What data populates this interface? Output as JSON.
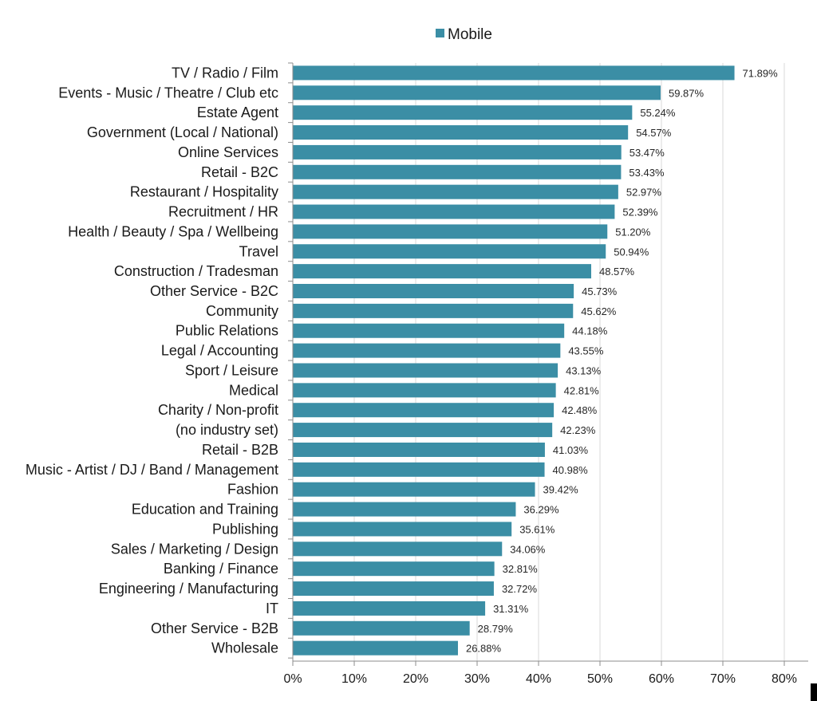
{
  "chart_data": {
    "type": "bar",
    "orientation": "horizontal",
    "colors": {
      "bar": "#3b8ea5",
      "grid": "#d9d9d9",
      "axis": "#8c8c8c"
    },
    "legend": {
      "position": "top",
      "entries": [
        "Mobile"
      ]
    },
    "grid": true,
    "xlim": [
      0,
      80
    ],
    "x_ticks": [
      "0%",
      "10%",
      "20%",
      "30%",
      "40%",
      "50%",
      "60%",
      "70%",
      "80%"
    ],
    "series": [
      {
        "name": "Mobile",
        "categories": [
          "TV / Radio / Film",
          "Events - Music / Theatre / Club etc",
          "Estate Agent",
          "Government (Local / National)",
          "Online Services",
          "Retail - B2C",
          "Restaurant / Hospitality",
          "Recruitment / HR",
          "Health / Beauty / Spa / Wellbeing",
          "Travel",
          "Construction / Tradesman",
          "Other Service - B2C",
          "Community",
          "Public Relations",
          "Legal / Accounting",
          "Sport / Leisure",
          "Medical",
          "Charity / Non-profit",
          "(no industry set)",
          "Retail - B2B",
          "Music - Artist / DJ / Band / Management",
          "Fashion",
          "Education and Training",
          "Publishing",
          "Sales / Marketing / Design",
          "Banking / Finance",
          "Engineering / Manufacturing",
          "IT",
          "Other Service - B2B",
          "Wholesale"
        ],
        "values": [
          71.89,
          59.87,
          55.24,
          54.57,
          53.47,
          53.43,
          52.97,
          52.39,
          51.2,
          50.94,
          48.57,
          45.73,
          45.62,
          44.18,
          43.55,
          43.13,
          42.81,
          42.48,
          42.23,
          41.03,
          40.98,
          39.42,
          36.29,
          35.61,
          34.06,
          32.81,
          32.72,
          31.31,
          28.79,
          26.88
        ],
        "value_labels": [
          "71.89%",
          "59.87%",
          "55.24%",
          "54.57%",
          "53.47%",
          "53.43%",
          "52.97%",
          "52.39%",
          "51.20%",
          "50.94%",
          "48.57%",
          "45.73%",
          "45.62%",
          "44.18%",
          "43.55%",
          "43.13%",
          "42.81%",
          "42.48%",
          "42.23%",
          "41.03%",
          "40.98%",
          "39.42%",
          "36.29%",
          "35.61%",
          "34.06%",
          "32.81%",
          "32.72%",
          "31.31%",
          "28.79%",
          "26.88%"
        ]
      }
    ]
  }
}
